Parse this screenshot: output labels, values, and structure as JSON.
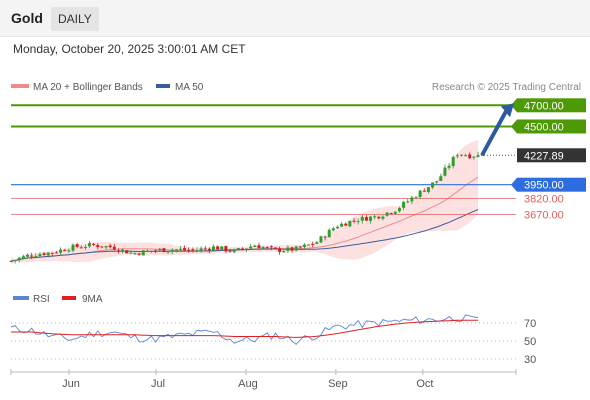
{
  "header": {
    "instrument": "Gold",
    "period": "DAILY"
  },
  "datetime": "Monday, October 20, 2025 3:00:01 AM CET",
  "legend": {
    "bollinger": "MA 20 + Bollinger Bands",
    "ma50": "MA 50",
    "credit": "Research © 2025 Trading Central"
  },
  "colors": {
    "target": "#4e9a06",
    "pivot": "#2e6de0",
    "support": "#e06060",
    "current": "#333333",
    "candle_up": "#2f9e2f",
    "candle_down": "#cc2222",
    "ma50": "#3b5c9c",
    "ma20": "#f08a8a",
    "band_fill": "#fde1e1",
    "arrow": "#2c5aa0",
    "rsi": "#5b84d6",
    "rsi_ma": "#e02020"
  },
  "price_levels": [
    {
      "value": 4700.0,
      "label": "4700.00",
      "type": "target"
    },
    {
      "value": 4500.0,
      "label": "4500.00",
      "type": "target"
    },
    {
      "value": 4227.89,
      "label": "4227.89",
      "type": "current"
    },
    {
      "value": 3950.0,
      "label": "3950.00",
      "type": "pivot"
    },
    {
      "value": 3820.0,
      "label": "3820.00",
      "type": "support"
    },
    {
      "value": 3670.0,
      "label": "3670.00",
      "type": "support"
    }
  ],
  "rsi_legend": {
    "rsi": "RSI",
    "ma": "9MA"
  },
  "rsi_levels": [
    "70",
    "50",
    "30"
  ],
  "x_labels": [
    "Jun",
    "Jul",
    "Aug",
    "Sep",
    "Oct"
  ],
  "chart_data": [
    {
      "type": "candlestick",
      "title": "Gold",
      "ylim": [
        3050,
        4750
      ],
      "x_range": [
        "2025-05-12",
        "2025-10-20"
      ],
      "close_series": [
        {
          "date": "2025-05-12",
          "close": 3230
        },
        {
          "date": "2025-05-19",
          "close": 3290
        },
        {
          "date": "2025-05-26",
          "close": 3310
        },
        {
          "date": "2025-06-02",
          "close": 3360
        },
        {
          "date": "2025-06-09",
          "close": 3380
        },
        {
          "date": "2025-06-16",
          "close": 3360
        },
        {
          "date": "2025-06-23",
          "close": 3300
        },
        {
          "date": "2025-06-30",
          "close": 3330
        },
        {
          "date": "2025-07-07",
          "close": 3340
        },
        {
          "date": "2025-07-14",
          "close": 3330
        },
        {
          "date": "2025-07-21",
          "close": 3360
        },
        {
          "date": "2025-07-28",
          "close": 3320
        },
        {
          "date": "2025-08-04",
          "close": 3380
        },
        {
          "date": "2025-08-11",
          "close": 3330
        },
        {
          "date": "2025-08-18",
          "close": 3340
        },
        {
          "date": "2025-08-25",
          "close": 3400
        },
        {
          "date": "2025-09-01",
          "close": 3560
        },
        {
          "date": "2025-09-08",
          "close": 3620
        },
        {
          "date": "2025-09-15",
          "close": 3650
        },
        {
          "date": "2025-09-22",
          "close": 3720
        },
        {
          "date": "2025-09-29",
          "close": 3860
        },
        {
          "date": "2025-10-06",
          "close": 3990
        },
        {
          "date": "2025-10-13",
          "close": 4250
        },
        {
          "date": "2025-10-17",
          "close": 4227.89
        }
      ],
      "projection": {
        "from": 4227.89,
        "to": 4700.0
      }
    },
    {
      "type": "line",
      "title": "RSI",
      "ylim": [
        20,
        90
      ],
      "series": [
        {
          "name": "RSI",
          "values": [
            64,
            62,
            55,
            52,
            58,
            60,
            54,
            52,
            55,
            58,
            60,
            50,
            52,
            57,
            50,
            56,
            66,
            68,
            70,
            72,
            73,
            74,
            76,
            73
          ]
        },
        {
          "name": "9MA",
          "values": [
            60,
            60,
            58,
            57,
            57,
            57,
            57,
            56,
            56,
            56,
            56,
            55,
            55,
            55,
            54,
            55,
            58,
            62,
            66,
            69,
            71,
            72,
            73,
            73
          ]
        }
      ]
    }
  ]
}
